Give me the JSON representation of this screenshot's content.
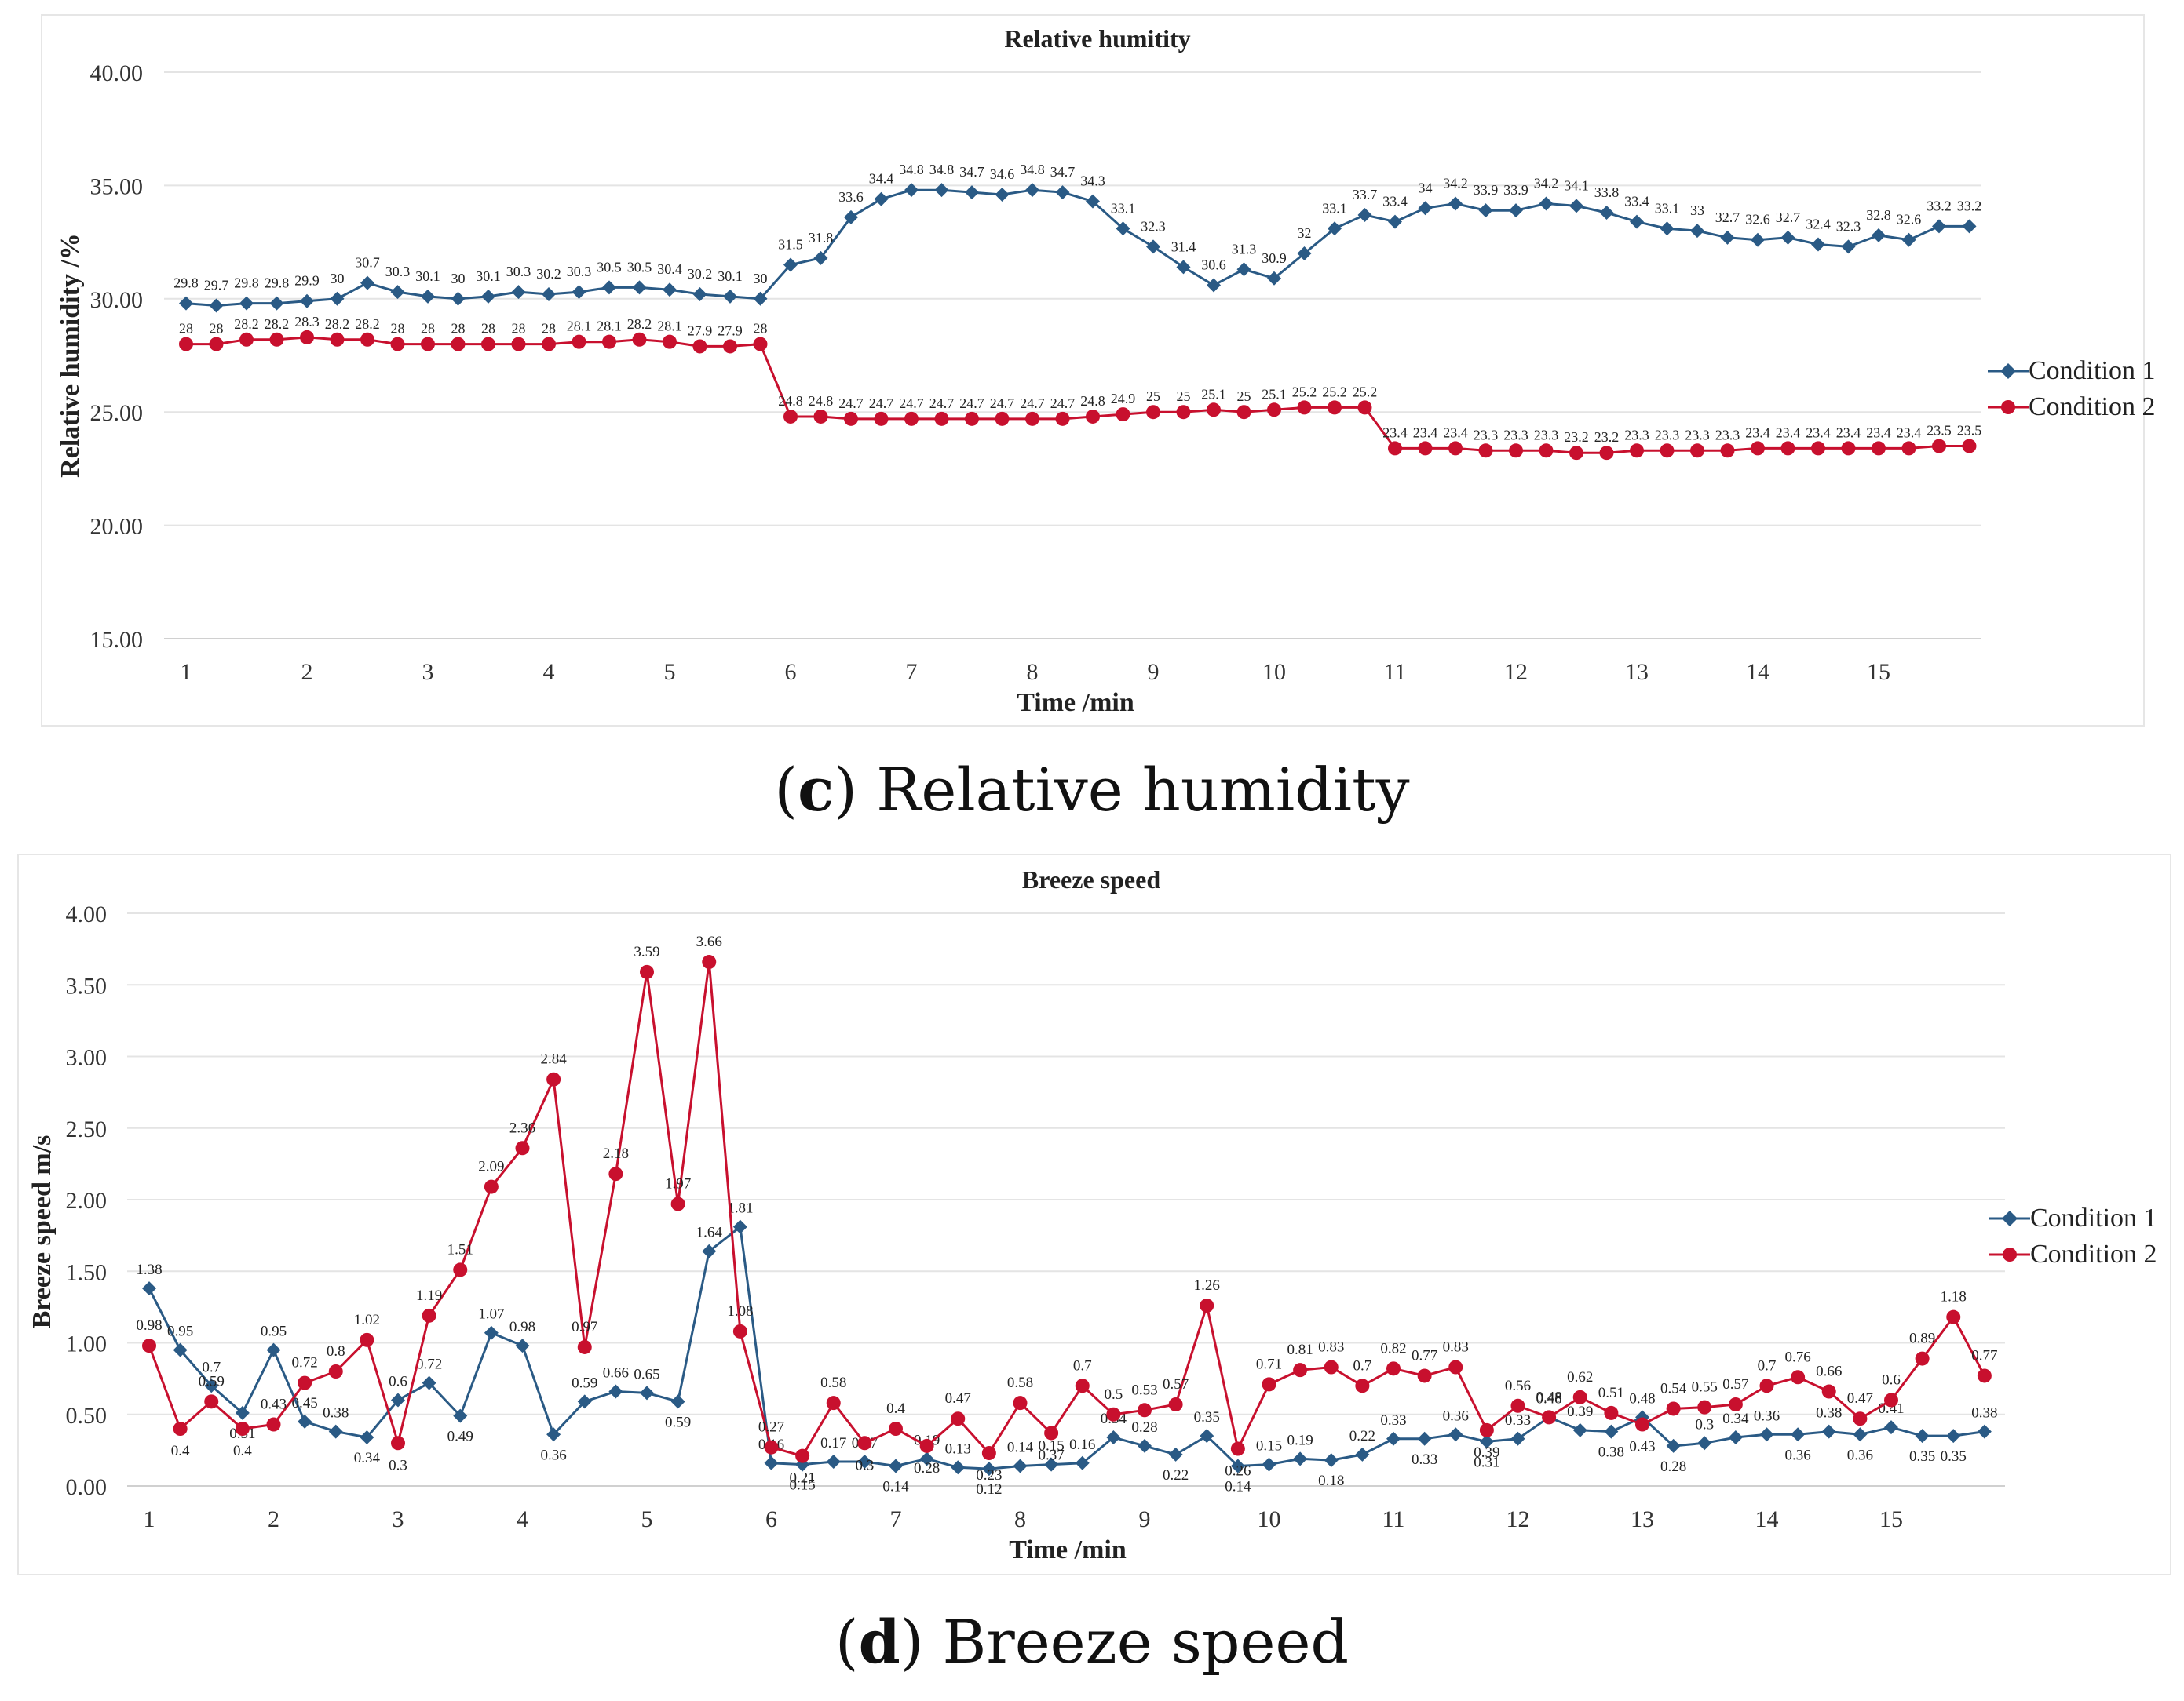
{
  "charts": [
    {
      "id": "rh",
      "caption_letter": "c",
      "caption_text": " Relative humidity",
      "chart_data": {
        "type": "line",
        "title": "Relative humitity",
        "xlabel": "Time /min",
        "ylabel": "Relative humidity /%",
        "ylim": [
          15,
          40
        ],
        "ytick_step": 5,
        "ytick_decimals": 2,
        "xticks": [
          "1",
          "2",
          "3",
          "4",
          "5",
          "6",
          "7",
          "8",
          "9",
          "10",
          "11",
          "12",
          "13",
          "14",
          "15"
        ],
        "points_per_minute": 4,
        "series": [
          {
            "name": "Condition 1",
            "color": "#2a5a85",
            "marker": "diamond",
            "values": [
              29.8,
              29.7,
              29.8,
              29.8,
              29.9,
              30,
              30.7,
              30.3,
              30.1,
              30,
              30.1,
              30.3,
              30.2,
              30.3,
              30.5,
              30.5,
              30.4,
              30.2,
              30.1,
              30,
              31.5,
              31.8,
              33.6,
              34.4,
              34.8,
              34.8,
              34.7,
              34.6,
              34.8,
              34.7,
              34.3,
              33.1,
              32.3,
              31.4,
              30.6,
              31.3,
              30.9,
              32,
              33.1,
              33.7,
              33.4,
              34,
              34.2,
              33.9,
              33.9,
              34.2,
              34.1,
              33.8,
              33.4,
              33.1,
              33,
              32.7,
              32.6,
              32.7,
              32.4,
              32.3,
              32.8,
              32.6,
              33.2,
              33.2
            ]
          },
          {
            "name": "Condition 2",
            "color": "#c8102e",
            "marker": "circle",
            "values": [
              28,
              28,
              28.2,
              28.2,
              28.3,
              28.2,
              28.2,
              28,
              28,
              28,
              28,
              28,
              28,
              28.1,
              28.1,
              28.2,
              28.1,
              27.9,
              27.9,
              28,
              24.8,
              24.8,
              24.7,
              24.7,
              24.7,
              24.7,
              24.7,
              24.7,
              24.7,
              24.7,
              24.8,
              24.9,
              25,
              25,
              25.1,
              25,
              25.1,
              25.2,
              25.2,
              25.2,
              23.4,
              23.4,
              23.4,
              23.3,
              23.3,
              23.3,
              23.2,
              23.2,
              23.3,
              23.3,
              23.3,
              23.3,
              23.4,
              23.4,
              23.4,
              23.4,
              23.4,
              23.4,
              23.5,
              23.5
            ]
          }
        ]
      }
    },
    {
      "id": "bs",
      "caption_letter": "d",
      "caption_text": " Breeze speed",
      "chart_data": {
        "type": "line",
        "title": "Breeze speed",
        "xlabel": "Time /min",
        "ylabel": "Breeze speed m/s",
        "ylim": [
          0,
          4
        ],
        "ytick_step": 0.5,
        "ytick_decimals": 2,
        "xticks": [
          "1",
          "2",
          "3",
          "4",
          "5",
          "6",
          "7",
          "8",
          "9",
          "10",
          "11",
          "12",
          "13",
          "14",
          "15"
        ],
        "points_per_minute": 4,
        "series": [
          {
            "name": "Condition 1",
            "color": "#2a5a85",
            "marker": "diamond",
            "values": [
              1.38,
              0.95,
              0.7,
              0.51,
              0.95,
              0.45,
              0.38,
              0.34,
              0.6,
              0.72,
              0.49,
              1.07,
              0.98,
              0.36,
              0.59,
              0.66,
              0.65,
              0.59,
              1.64,
              1.81,
              0.16,
              0.15,
              0.17,
              0.17,
              0.14,
              0.19,
              0.13,
              0.12,
              0.14,
              0.15,
              0.16,
              0.34,
              0.28,
              0.22,
              0.35,
              0.14,
              0.15,
              0.19,
              0.18,
              0.22,
              0.33,
              0.33,
              0.36,
              0.31,
              0.33,
              0.48,
              0.39,
              0.38,
              0.48,
              0.28,
              0.3,
              0.34,
              0.36,
              0.36,
              0.38,
              0.36,
              0.41,
              0.35,
              0.35,
              0.38
            ]
          },
          {
            "name": "Condition 2",
            "color": "#c8102e",
            "marker": "circle",
            "values": [
              0.98,
              0.4,
              0.59,
              0.4,
              0.43,
              0.72,
              0.8,
              1.02,
              0.3,
              1.19,
              1.51,
              2.09,
              2.36,
              2.84,
              0.97,
              2.18,
              3.59,
              1.97,
              3.66,
              1.08,
              0.27,
              0.21,
              0.58,
              0.3,
              0.4,
              0.28,
              0.47,
              0.23,
              0.58,
              0.37,
              0.7,
              0.5,
              0.53,
              0.57,
              1.26,
              0.26,
              0.71,
              0.81,
              0.83,
              0.7,
              0.82,
              0.77,
              0.83,
              0.39,
              0.56,
              0.48,
              0.62,
              0.51,
              0.43,
              0.54,
              0.55,
              0.57,
              0.7,
              0.76,
              0.66,
              0.47,
              0.6,
              0.89,
              1.18,
              0.77
            ]
          }
        ]
      }
    }
  ]
}
